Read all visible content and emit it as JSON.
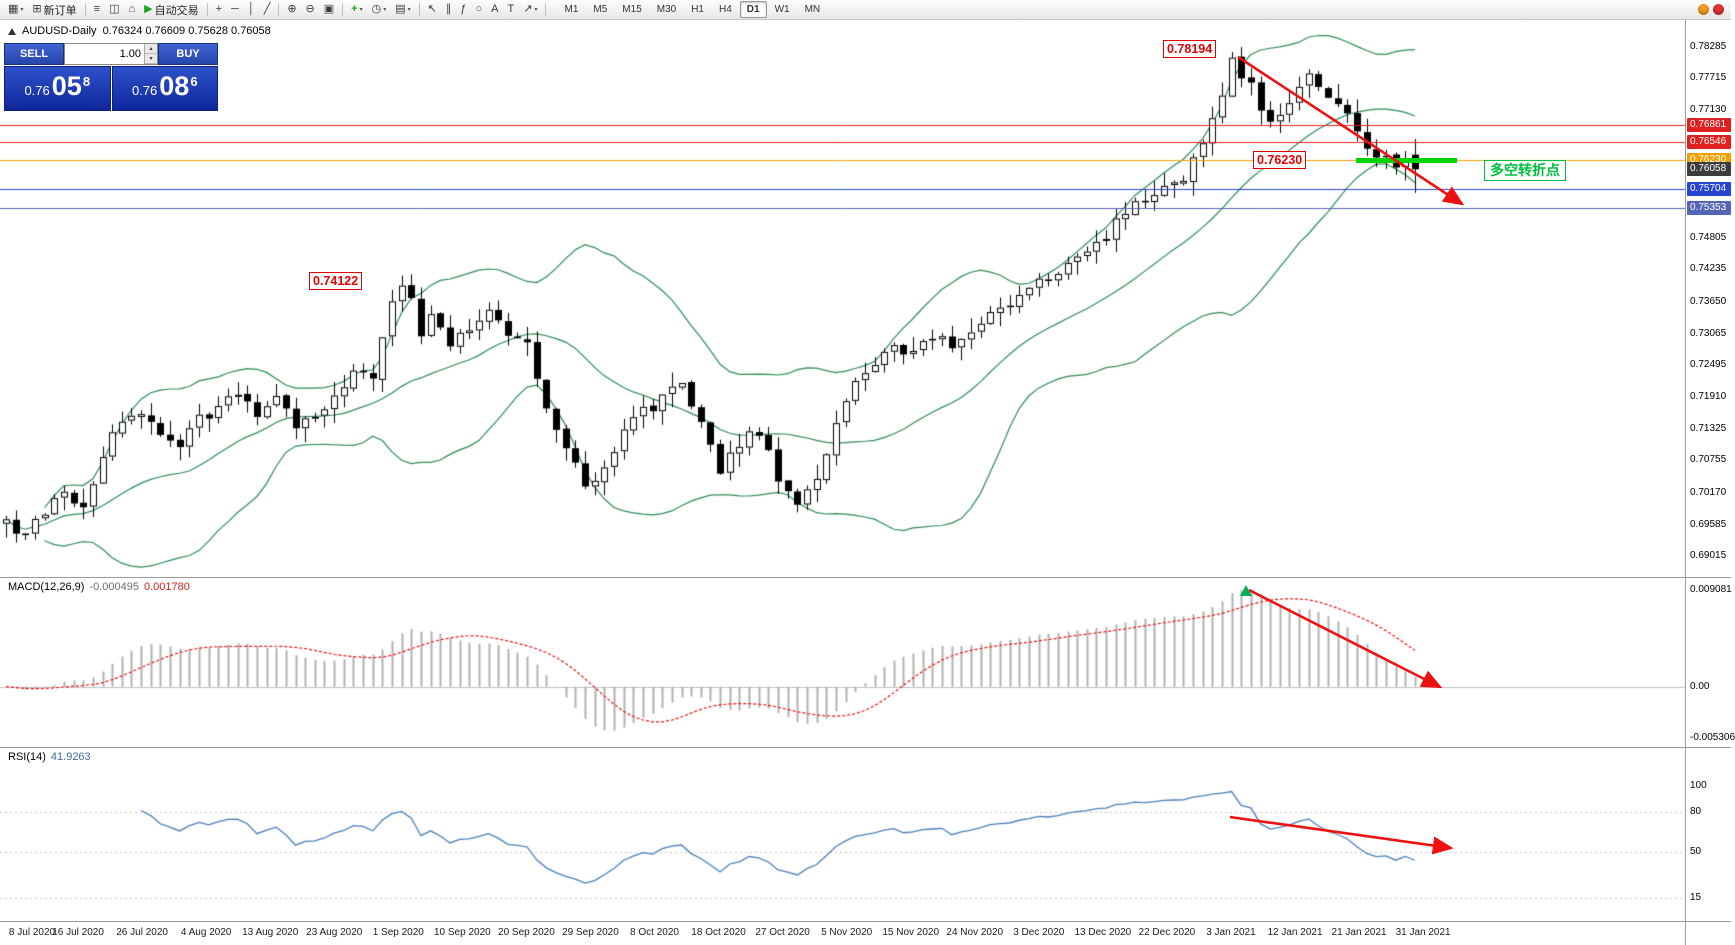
{
  "toolbar": {
    "items": [
      {
        "name": "new-chart-icon",
        "glyph": "▦",
        "caret": true
      },
      {
        "name": "new-order-button",
        "glyph": "⊞",
        "label": "新订单"
      },
      {
        "type": "sep"
      },
      {
        "name": "market-watch-icon",
        "glyph": "≡"
      },
      {
        "name": "data-window-icon",
        "glyph": "◫"
      },
      {
        "name": "navigator-icon",
        "glyph": "⌂"
      },
      {
        "name": "autotrade-button",
        "glyph": "▶",
        "label": "自动交易",
        "glyph_color": "#1ca41c"
      },
      {
        "type": "sep"
      },
      {
        "name": "crosshair-tool-icon",
        "glyph": "+"
      },
      {
        "name": "hline-tool-icon",
        "glyph": "─"
      },
      {
        "name": "vline-tool-icon",
        "glyph": "│"
      },
      {
        "name": "trendline-tool-icon",
        "glyph": "╱"
      },
      {
        "type": "sep"
      },
      {
        "name": "zoom-in-icon",
        "glyph": "⊕"
      },
      {
        "name": "zoom-out-icon",
        "glyph": "⊖"
      },
      {
        "name": "tile-windows-icon",
        "glyph": "▣"
      },
      {
        "type": "sep"
      },
      {
        "name": "indicators-icon",
        "glyph": "+",
        "glyph_color": "#1ca41c",
        "caret": true
      },
      {
        "name": "periods-icon",
        "glyph": "◷",
        "caret": true
      },
      {
        "name": "templates-icon",
        "glyph": "▤",
        "caret": true
      },
      {
        "type": "sep"
      },
      {
        "name": "cursor-tool-icon",
        "glyph": "↖"
      },
      {
        "name": "channel-tool-icon",
        "glyph": "∥"
      },
      {
        "name": "fibonacci-tool-icon",
        "glyph": "ƒ"
      },
      {
        "name": "shapes-tool-icon",
        "glyph": "○"
      },
      {
        "name": "text-tool-icon",
        "glyph": "A"
      },
      {
        "name": "label-tool-icon",
        "glyph": "T"
      },
      {
        "name": "arrow-tool-icon",
        "glyph": "↗",
        "caret": true
      },
      {
        "type": "sep"
      }
    ],
    "timeframes": [
      "M1",
      "M5",
      "M15",
      "M30",
      "H1",
      "H4",
      "D1",
      "W1",
      "MN"
    ],
    "active_timeframe": "D1",
    "right_icons": [
      {
        "name": "mail-icon",
        "color": "#f59a23"
      },
      {
        "name": "alert-icon",
        "color": "#e03636"
      }
    ]
  },
  "chart": {
    "title": "AUDUSD-Daily",
    "ohlc": "0.76324 0.76609 0.75628 0.76058"
  },
  "trade_panel": {
    "sell_label": "SELL",
    "buy_label": "BUY",
    "volume": "1.00",
    "spinner_up": "▴",
    "spinner_down": "▾",
    "sell_price": {
      "prefix": "0.76",
      "big": "05",
      "sup": "8"
    },
    "buy_price": {
      "prefix": "0.76",
      "big": "08",
      "sup": "6"
    }
  },
  "annotations": {
    "high_label": "0.78194",
    "swing_label": "0.74122",
    "support_label": "0.76230",
    "note_label": "多空转折点"
  },
  "price_scale": {
    "ticks": [
      "0.78285",
      "0.77715",
      "0.77130",
      "0.74805",
      "0.74235",
      "0.73650",
      "0.73065",
      "0.72495",
      "0.71910",
      "0.71325",
      "0.70755",
      "0.70170",
      "0.69585",
      "0.69015"
    ],
    "tags": [
      {
        "text": "0.76861",
        "bg": "#e02020"
      },
      {
        "text": "0.76546",
        "bg": "#e02020"
      },
      {
        "text": "0.76230",
        "bg": "#f0a000"
      },
      {
        "text": "0.76058",
        "bg": "#3c3c3c"
      },
      {
        "text": "0.75704",
        "bg": "#2545d2"
      },
      {
        "text": "0.75353",
        "bg": "#5565b5"
      }
    ]
  },
  "macd": {
    "name": "MACD(12,26,9)",
    "value_main": "-0.000495",
    "value_signal": "0.001780",
    "scale": {
      "top": "0.009081",
      "zero": "0.00",
      "bottom": "-0.005306"
    }
  },
  "rsi": {
    "name": "RSI(14)",
    "value": "41.9263",
    "levels": [
      "100",
      "80",
      "50",
      "15"
    ]
  },
  "date_axis": [
    "8 Jul 2020",
    "16 Jul 2020",
    "26 Jul 2020",
    "4 Aug 2020",
    "13 Aug 2020",
    "23 Aug 2020",
    "1 Sep 2020",
    "10 Sep 2020",
    "20 Sep 2020",
    "29 Sep 2020",
    "8 Oct 2020",
    "18 Oct 2020",
    "27 Oct 2020",
    "5 Nov 2020",
    "15 Nov 2020",
    "24 Nov 2020",
    "3 Dec 2020",
    "13 Dec 2020",
    "22 Dec 2020",
    "3 Jan 2021",
    "12 Jan 2021",
    "21 Jan 2021",
    "31 Jan 2021"
  ],
  "chart_data": {
    "type": "candlestick",
    "symbol": "AUDUSD",
    "timeframe": "Daily",
    "candle_count": 147,
    "price_axis": {
      "tick_max": 0.78285,
      "tick_min": 0.69015,
      "tick_step": 0.00585
    },
    "bollinger": {
      "period": 20,
      "deviation": 2,
      "color": "#2e8b57"
    },
    "hlines": [
      {
        "price": 0.76861,
        "color": "#e02020"
      },
      {
        "price": 0.76546,
        "color": "#e02020"
      },
      {
        "price": 0.7623,
        "color": "#f0a000"
      },
      {
        "price": 0.75704,
        "color": "#2545d2"
      },
      {
        "price": 0.75353,
        "color": "#5565b5"
      }
    ],
    "anchors": [
      [
        0,
        0.696
      ],
      [
        2,
        0.6935
      ],
      [
        4,
        0.6985
      ],
      [
        6,
        0.701
      ],
      [
        8,
        0.6995
      ],
      [
        10,
        0.7085
      ],
      [
        12,
        0.715
      ],
      [
        14,
        0.716
      ],
      [
        16,
        0.712
      ],
      [
        18,
        0.7105
      ],
      [
        20,
        0.7155
      ],
      [
        22,
        0.7165
      ],
      [
        24,
        0.7205
      ],
      [
        26,
        0.715
      ],
      [
        28,
        0.7185
      ],
      [
        30,
        0.7145
      ],
      [
        32,
        0.7155
      ],
      [
        34,
        0.719
      ],
      [
        36,
        0.724
      ],
      [
        38,
        0.723
      ],
      [
        40,
        0.7365
      ],
      [
        41,
        0.74
      ],
      [
        42,
        0.7375
      ],
      [
        43,
        0.731
      ],
      [
        44,
        0.7345
      ],
      [
        46,
        0.7285
      ],
      [
        48,
        0.731
      ],
      [
        50,
        0.7345
      ],
      [
        52,
        0.7305
      ],
      [
        54,
        0.729
      ],
      [
        55,
        0.7235
      ],
      [
        56,
        0.7165
      ],
      [
        58,
        0.7105
      ],
      [
        60,
        0.703
      ],
      [
        62,
        0.7065
      ],
      [
        64,
        0.713
      ],
      [
        66,
        0.7165
      ],
      [
        68,
        0.7185
      ],
      [
        70,
        0.7215
      ],
      [
        72,
        0.715
      ],
      [
        74,
        0.706
      ],
      [
        76,
        0.7105
      ],
      [
        78,
        0.713
      ],
      [
        80,
        0.704
      ],
      [
        82,
        0.7
      ],
      [
        84,
        0.7035
      ],
      [
        86,
        0.715
      ],
      [
        88,
        0.723
      ],
      [
        90,
        0.726
      ],
      [
        92,
        0.7285
      ],
      [
        94,
        0.7265
      ],
      [
        96,
        0.73
      ],
      [
        98,
        0.7285
      ],
      [
        100,
        0.7305
      ],
      [
        102,
        0.734
      ],
      [
        104,
        0.7365
      ],
      [
        106,
        0.739
      ],
      [
        108,
        0.7415
      ],
      [
        110,
        0.743
      ],
      [
        112,
        0.7455
      ],
      [
        114,
        0.749
      ],
      [
        116,
        0.753
      ],
      [
        118,
        0.7555
      ],
      [
        120,
        0.7575
      ],
      [
        122,
        0.7595
      ],
      [
        124,
        0.7655
      ],
      [
        126,
        0.7745
      ],
      [
        127,
        0.78
      ],
      [
        128,
        0.777
      ],
      [
        129,
        0.7755
      ],
      [
        130,
        0.7705
      ],
      [
        131,
        0.7695
      ],
      [
        132,
        0.7715
      ],
      [
        133,
        0.773
      ],
      [
        134,
        0.7755
      ],
      [
        135,
        0.777
      ],
      [
        136,
        0.7745
      ],
      [
        137,
        0.773
      ],
      [
        138,
        0.772
      ],
      [
        139,
        0.77
      ],
      [
        140,
        0.7675
      ],
      [
        141,
        0.7635
      ],
      [
        142,
        0.7625
      ],
      [
        143,
        0.764
      ],
      [
        144,
        0.7615
      ],
      [
        145,
        0.763
      ],
      [
        146,
        0.76058
      ]
    ],
    "overrides": {
      "swing_high": {
        "index": 41,
        "high": 0.74122
      },
      "peak": {
        "index": 127,
        "high": 0.78194
      },
      "last": {
        "index": 146,
        "open": 0.76324,
        "high": 0.76609,
        "low": 0.75628,
        "close": 0.76058
      }
    }
  }
}
